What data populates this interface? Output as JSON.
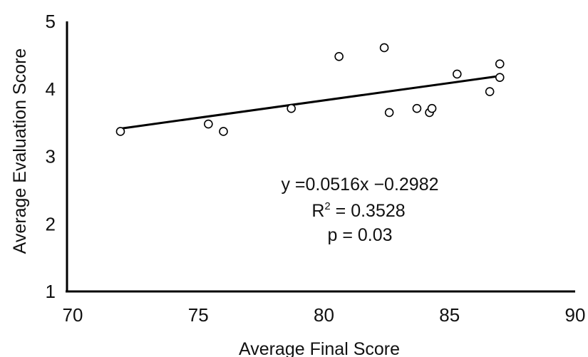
{
  "chart_data": {
    "type": "scatter",
    "title": "",
    "xlabel": "Average Final Score",
    "ylabel": "Average Evaluation Score",
    "xlim": [
      70,
      90
    ],
    "ylim": [
      1,
      5
    ],
    "x_ticks": [
      "70",
      "75",
      "80",
      "85",
      "90"
    ],
    "y_ticks": [
      "1",
      "2",
      "3",
      "4",
      "5"
    ],
    "grid": false,
    "legend": "none",
    "points": [
      {
        "x": 71.9,
        "y": 3.37
      },
      {
        "x": 75.4,
        "y": 3.48
      },
      {
        "x": 76.0,
        "y": 3.37
      },
      {
        "x": 78.7,
        "y": 3.71
      },
      {
        "x": 80.6,
        "y": 4.48
      },
      {
        "x": 82.4,
        "y": 4.61
      },
      {
        "x": 82.6,
        "y": 3.65
      },
      {
        "x": 83.7,
        "y": 3.71
      },
      {
        "x": 84.2,
        "y": 3.65
      },
      {
        "x": 84.3,
        "y": 3.71
      },
      {
        "x": 85.3,
        "y": 4.22
      },
      {
        "x": 86.6,
        "y": 3.96
      },
      {
        "x": 87.0,
        "y": 4.17
      },
      {
        "x": 87.0,
        "y": 4.37
      }
    ],
    "trendline": {
      "x_start": 71.9,
      "x_end": 87.0,
      "slope": 0.0516,
      "intercept": -0.2982
    },
    "annotations": {
      "equation": "y =0.0516x  −0.2982",
      "r2_label": "R",
      "r2_sup": "2",
      "r2_value": " = 0.3528",
      "p_value": "p = 0.03"
    }
  }
}
